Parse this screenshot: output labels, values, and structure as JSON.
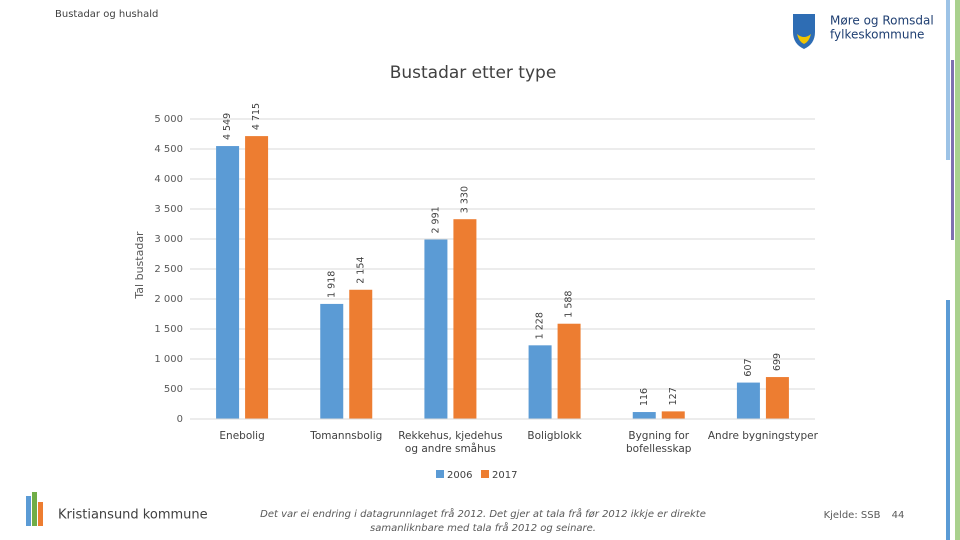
{
  "slide": {
    "header": "Bustadar og hushald",
    "logo_lines": [
      "Møre og Romsdal",
      "fylkeskommune"
    ],
    "footer_left": "Kristiansund kommune",
    "note": [
      "Det var ei endring i datagrunnlaget frå 2012. Det gjer at tala frå før 2012 ikkje er direkte",
      "samanliknbare med tala frå 2012 og seinare."
    ],
    "source": "Kjelde: SSB",
    "page": "44"
  },
  "chart_data": {
    "type": "bar",
    "title": "Bustadar etter type",
    "y_label": "Tal bustadar",
    "categories": [
      "Enebolig",
      "Tomannsbolig",
      "Rekkehus, kjedehus og andre småhus",
      "Boligblokk",
      "Bygning for bofellesskap",
      "Andre bygningstyper"
    ],
    "series": [
      {
        "name": "2006",
        "color": "#5b9bd5",
        "values": [
          4549,
          1918,
          2991,
          1228,
          116,
          607
        ],
        "value_labels": [
          "4 549",
          "1 918",
          "2 991",
          "1 228",
          "116",
          "607"
        ]
      },
      {
        "name": "2017",
        "color": "#ed7d31",
        "values": [
          4715,
          2154,
          3330,
          1588,
          127,
          699
        ],
        "value_labels": [
          "4 715",
          "2 154",
          "3 330",
          "1 588",
          "127",
          "699"
        ]
      }
    ],
    "ylim": [
      0,
      5000
    ],
    "yticks": [
      0,
      500,
      {
        "value": 1000,
        "label": "1 000"
      },
      {
        "value": 1500,
        "label": "1 500"
      },
      {
        "value": 2000,
        "label": "2 000"
      },
      {
        "value": 2500,
        "label": "2 500"
      },
      {
        "value": 3000,
        "label": "3 000"
      },
      {
        "value": 3500,
        "label": "3 500"
      },
      {
        "value": 4000,
        "label": "4 000"
      },
      {
        "value": 4500,
        "label": "4 500"
      },
      {
        "value": 5000,
        "label": "5 000"
      }
    ],
    "grid": true
  }
}
